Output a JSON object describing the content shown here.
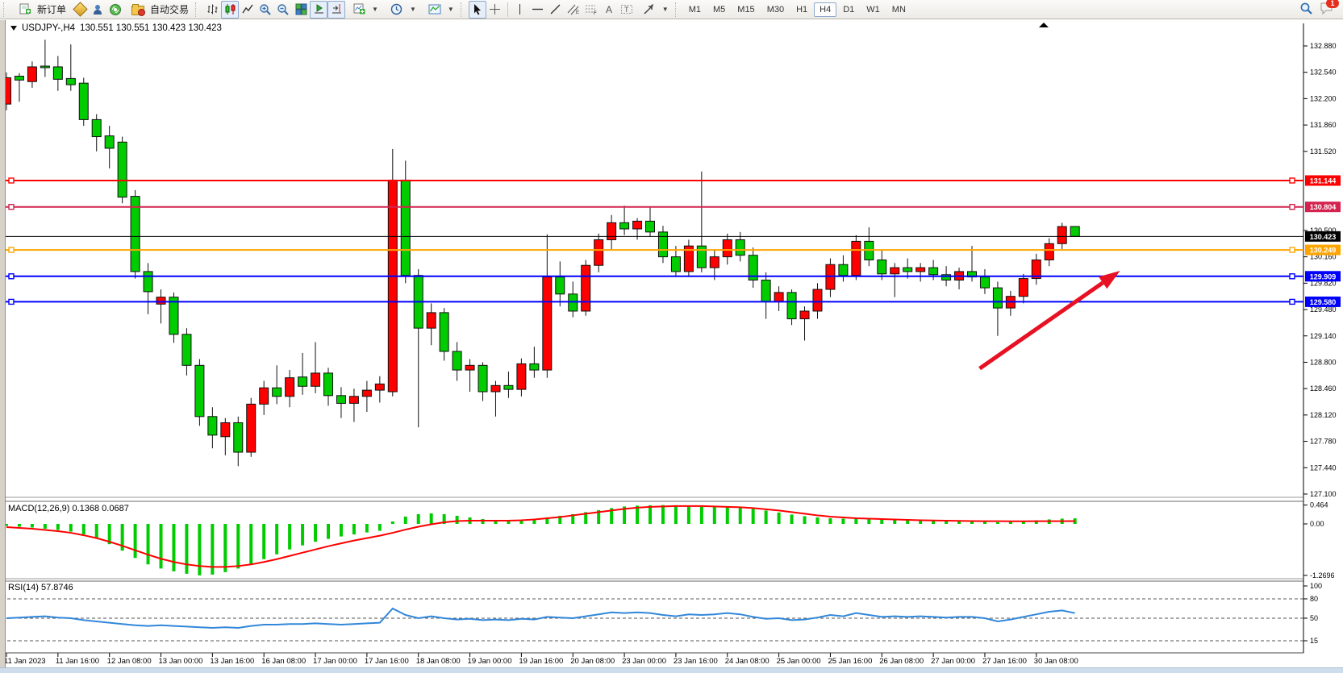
{
  "toolbar": {
    "new_order_label": "新订单",
    "autotrading_label": "自动交易",
    "timeframes": [
      "M1",
      "M5",
      "M15",
      "M30",
      "H1",
      "H4",
      "D1",
      "W1",
      "MN"
    ],
    "active_timeframe": "H4",
    "badge_count": "1"
  },
  "title_bar": {
    "symbol_period": "USDJPY-,H4",
    "ohlc_text": "130.551 130.551 130.423 130.423"
  },
  "chart_data": {
    "type": "candlestick",
    "symbol": "USDJPY-",
    "timeframe": "H4",
    "title": "USDJPY-,H4 130.551 130.551 130.423 130.423",
    "current_bar": {
      "open": 130.551,
      "high": 130.551,
      "low": 130.423,
      "close": 130.423
    },
    "colors": {
      "bull": "#ff0000",
      "bear": "#00cc00",
      "outline": "#111111",
      "macd_hist": "#00cc00",
      "macd_signal": "#ff0000",
      "rsi_line": "#3287d9",
      "arrow": "#e81123"
    },
    "y_axis": {
      "tick_labels": [
        "132.880",
        "132.540",
        "132.200",
        "131.860",
        "131.520",
        "130.500",
        "130.160",
        "129.820",
        "129.480",
        "129.140",
        "128.800",
        "128.460",
        "128.120",
        "127.780",
        "127.440",
        "127.100"
      ]
    },
    "x_axis": {
      "labels": [
        "11 Jan 2023",
        "11 Jan 16:00",
        "12 Jan 08:00",
        "13 Jan 00:00",
        "13 Jan 16:00",
        "16 Jan 08:00",
        "17 Jan 00:00",
        "17 Jan 16:00",
        "18 Jan 08:00",
        "19 Jan 00:00",
        "19 Jan 16:00",
        "20 Jan 08:00",
        "23 Jan 00:00",
        "23 Jan 16:00",
        "24 Jan 08:00",
        "25 Jan 00:00",
        "25 Jan 16:00",
        "26 Jan 08:00",
        "27 Jan 00:00",
        "27 Jan 16:00",
        "30 Jan 08:00"
      ]
    },
    "levels": [
      {
        "price": 131.144,
        "label": "131.144",
        "color": "#ff0000",
        "width": 2,
        "handles": true
      },
      {
        "price": 130.804,
        "label": "130.804",
        "color": "#d4234e",
        "width": 2,
        "handles": true
      },
      {
        "price": 130.423,
        "label": "130.423",
        "color": "#000000",
        "width": 1,
        "handles": false
      },
      {
        "price": 130.249,
        "label": "130.249",
        "color": "#ffa500",
        "width": 2,
        "handles": true
      },
      {
        "price": 129.909,
        "label": "129.909",
        "color": "#0000ff",
        "width": 2,
        "handles": true
      },
      {
        "price": 129.58,
        "label": "129.580",
        "color": "#0000ff",
        "width": 2,
        "handles": true
      }
    ],
    "bars": [
      [
        132.13,
        132.54,
        132.05,
        132.47
      ],
      [
        132.49,
        132.53,
        132.16,
        132.44
      ],
      [
        132.42,
        132.68,
        132.34,
        132.61
      ],
      [
        132.62,
        132.96,
        132.48,
        132.6
      ],
      [
        132.61,
        132.75,
        132.3,
        132.45
      ],
      [
        132.46,
        132.9,
        132.3,
        132.38
      ],
      [
        132.4,
        132.47,
        131.85,
        131.93
      ],
      [
        131.93,
        132.0,
        131.52,
        131.71
      ],
      [
        131.72,
        131.85,
        131.3,
        131.56
      ],
      [
        131.64,
        131.71,
        130.85,
        130.93
      ],
      [
        130.94,
        131.02,
        129.88,
        129.97
      ],
      [
        129.97,
        130.08,
        129.42,
        129.71
      ],
      [
        129.55,
        129.74,
        129.3,
        129.64
      ],
      [
        129.64,
        129.7,
        129.05,
        129.16
      ],
      [
        129.16,
        129.24,
        128.63,
        128.76
      ],
      [
        128.76,
        128.84,
        127.98,
        128.1
      ],
      [
        128.1,
        128.22,
        127.69,
        127.86
      ],
      [
        127.84,
        128.08,
        127.6,
        128.02
      ],
      [
        128.02,
        128.1,
        127.46,
        127.64
      ],
      [
        127.64,
        128.34,
        127.58,
        128.26
      ],
      [
        128.26,
        128.56,
        128.12,
        128.47
      ],
      [
        128.47,
        128.76,
        128.26,
        128.36
      ],
      [
        128.36,
        128.7,
        128.22,
        128.6
      ],
      [
        128.61,
        128.92,
        128.38,
        128.49
      ],
      [
        128.49,
        129.06,
        128.4,
        128.66
      ],
      [
        128.66,
        128.73,
        128.24,
        128.37
      ],
      [
        128.37,
        128.48,
        128.08,
        128.27
      ],
      [
        128.27,
        128.46,
        128.03,
        128.36
      ],
      [
        128.36,
        128.56,
        128.16,
        128.44
      ],
      [
        128.44,
        128.62,
        128.28,
        128.52
      ],
      [
        128.42,
        131.55,
        128.36,
        131.15
      ],
      [
        131.15,
        131.4,
        129.82,
        129.92
      ],
      [
        129.92,
        130.0,
        127.96,
        129.24
      ],
      [
        129.24,
        129.56,
        129.02,
        129.44
      ],
      [
        129.44,
        129.5,
        128.82,
        128.94
      ],
      [
        128.94,
        129.06,
        128.56,
        128.7
      ],
      [
        128.7,
        128.84,
        128.42,
        128.76
      ],
      [
        128.76,
        128.8,
        128.3,
        128.42
      ],
      [
        128.42,
        128.56,
        128.1,
        128.5
      ],
      [
        128.5,
        128.68,
        128.34,
        128.45
      ],
      [
        128.45,
        128.85,
        128.36,
        128.78
      ],
      [
        128.78,
        129.0,
        128.6,
        128.7
      ],
      [
        128.7,
        130.45,
        128.6,
        129.9
      ],
      [
        129.9,
        130.1,
        129.52,
        129.68
      ],
      [
        129.68,
        129.84,
        129.38,
        129.46
      ],
      [
        129.46,
        130.12,
        129.4,
        130.05
      ],
      [
        130.05,
        130.46,
        129.96,
        130.38
      ],
      [
        130.38,
        130.7,
        130.24,
        130.6
      ],
      [
        130.6,
        130.82,
        130.44,
        130.52
      ],
      [
        130.52,
        130.66,
        130.38,
        130.62
      ],
      [
        130.62,
        130.8,
        130.42,
        130.48
      ],
      [
        130.48,
        130.56,
        130.08,
        130.16
      ],
      [
        130.16,
        130.3,
        129.9,
        129.97
      ],
      [
        129.97,
        130.38,
        129.9,
        130.3
      ],
      [
        130.3,
        131.26,
        129.96,
        130.02
      ],
      [
        130.02,
        130.24,
        129.86,
        130.16
      ],
      [
        130.16,
        130.46,
        130.06,
        130.38
      ],
      [
        130.38,
        130.48,
        130.1,
        130.18
      ],
      [
        130.18,
        130.28,
        129.76,
        129.86
      ],
      [
        129.86,
        129.96,
        129.36,
        129.58
      ],
      [
        129.58,
        129.78,
        129.46,
        129.7
      ],
      [
        129.7,
        129.74,
        129.28,
        129.36
      ],
      [
        129.36,
        129.52,
        129.08,
        129.46
      ],
      [
        129.46,
        129.82,
        129.36,
        129.74
      ],
      [
        129.74,
        130.14,
        129.64,
        130.06
      ],
      [
        130.06,
        130.18,
        129.84,
        129.92
      ],
      [
        129.92,
        130.44,
        129.86,
        130.36
      ],
      [
        130.36,
        130.54,
        130.04,
        130.12
      ],
      [
        130.12,
        130.24,
        129.86,
        129.94
      ],
      [
        129.94,
        130.08,
        129.64,
        130.02
      ],
      [
        130.02,
        130.14,
        129.88,
        129.97
      ],
      [
        129.97,
        130.08,
        129.84,
        130.02
      ],
      [
        130.02,
        130.12,
        129.86,
        129.93
      ],
      [
        129.93,
        130.04,
        129.78,
        129.86
      ],
      [
        129.86,
        130.02,
        129.74,
        129.97
      ],
      [
        129.97,
        130.3,
        129.84,
        129.9
      ],
      [
        129.9,
        130.0,
        129.68,
        129.76
      ],
      [
        129.76,
        129.84,
        129.14,
        129.5
      ],
      [
        129.5,
        129.72,
        129.4,
        129.65
      ],
      [
        129.65,
        129.94,
        129.56,
        129.88
      ],
      [
        129.88,
        130.2,
        129.8,
        130.12
      ],
      [
        130.12,
        130.4,
        130.04,
        130.33
      ],
      [
        130.33,
        130.6,
        130.26,
        130.55
      ],
      [
        130.551,
        130.551,
        130.423,
        130.423
      ]
    ],
    "macd": {
      "label": "MACD(12,26,9) 0.1368 0.0687",
      "axis_labels": [
        "0.464",
        "0.00",
        "-1.2696"
      ],
      "histogram": [
        -0.05,
        -0.07,
        -0.09,
        -0.12,
        -0.15,
        -0.19,
        -0.26,
        -0.36,
        -0.5,
        -0.66,
        -0.84,
        -1.0,
        -1.1,
        -1.17,
        -1.23,
        -1.2696,
        -1.25,
        -1.19,
        -1.1,
        -0.99,
        -0.87,
        -0.75,
        -0.63,
        -0.53,
        -0.44,
        -0.37,
        -0.31,
        -0.26,
        -0.21,
        -0.17,
        0.06,
        0.18,
        0.24,
        0.26,
        0.24,
        0.2,
        0.16,
        0.12,
        0.1,
        0.09,
        0.1,
        0.12,
        0.16,
        0.2,
        0.24,
        0.29,
        0.34,
        0.39,
        0.43,
        0.45,
        0.46,
        0.464,
        0.46,
        0.45,
        0.44,
        0.43,
        0.42,
        0.4,
        0.37,
        0.33,
        0.28,
        0.23,
        0.19,
        0.16,
        0.14,
        0.13,
        0.13,
        0.12,
        0.11,
        0.1,
        0.09,
        0.08,
        0.07,
        0.06,
        0.06,
        0.05,
        0.05,
        0.04,
        0.05,
        0.07,
        0.09,
        0.11,
        0.13,
        0.1368
      ],
      "signal": [
        -0.08,
        -0.1,
        -0.12,
        -0.15,
        -0.18,
        -0.22,
        -0.28,
        -0.35,
        -0.44,
        -0.54,
        -0.65,
        -0.76,
        -0.86,
        -0.94,
        -1.0,
        -1.04,
        -1.06,
        -1.06,
        -1.04,
        -1.0,
        -0.94,
        -0.87,
        -0.79,
        -0.71,
        -0.63,
        -0.55,
        -0.48,
        -0.41,
        -0.35,
        -0.29,
        -0.22,
        -0.14,
        -0.07,
        -0.01,
        0.04,
        0.07,
        0.08,
        0.08,
        0.08,
        0.08,
        0.09,
        0.11,
        0.14,
        0.17,
        0.21,
        0.25,
        0.29,
        0.33,
        0.37,
        0.4,
        0.42,
        0.43,
        0.44,
        0.44,
        0.44,
        0.43,
        0.42,
        0.41,
        0.39,
        0.36,
        0.33,
        0.29,
        0.25,
        0.21,
        0.18,
        0.16,
        0.14,
        0.13,
        0.12,
        0.11,
        0.1,
        0.09,
        0.085,
        0.08,
        0.075,
        0.07,
        0.068,
        0.066,
        0.065,
        0.065,
        0.066,
        0.067,
        0.068,
        0.0687
      ]
    },
    "rsi": {
      "label": "RSI(14) 57.8746",
      "axis_labels": [
        "100",
        "80",
        "50",
        "15"
      ],
      "guide_levels": [
        80,
        50,
        15
      ],
      "values": [
        50,
        51,
        52,
        53,
        51,
        50,
        47,
        45,
        43,
        41,
        39,
        38,
        39,
        38,
        37,
        36,
        35,
        36,
        35,
        38,
        40,
        40,
        41,
        41,
        42,
        41,
        40,
        41,
        42,
        43,
        65,
        55,
        50,
        53,
        50,
        48,
        49,
        47,
        48,
        47,
        49,
        48,
        52,
        51,
        50,
        53,
        56,
        59,
        58,
        59,
        58,
        55,
        53,
        56,
        55,
        56,
        58,
        56,
        52,
        49,
        50,
        47,
        48,
        51,
        55,
        53,
        58,
        55,
        52,
        53,
        52,
        53,
        52,
        51,
        52,
        52,
        50,
        45,
        48,
        52,
        56,
        60,
        62,
        57.8746
      ]
    },
    "annotation_arrow": {
      "from": {
        "bar": 75.6,
        "price": 128.72
      },
      "to": {
        "bar": 86.5,
        "price": 129.98
      }
    }
  }
}
